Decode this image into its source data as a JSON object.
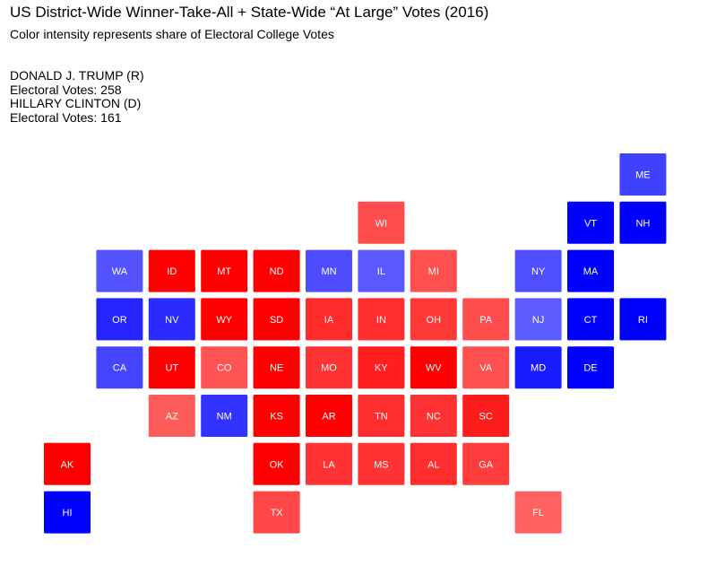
{
  "title": "US District-Wide Winner-Take-All + State-Wide “At Large” Votes (2016)",
  "subtitle": "Color intensity represents share of Electoral College Votes",
  "candidates": [
    {
      "name": "DONALD J. TRUMP (R)",
      "votes_label": "Electoral Votes: 258",
      "electoral_votes": 258
    },
    {
      "name": "HILLARY CLINTON (D)",
      "votes_label": "Electoral Votes: 161",
      "electoral_votes": 161
    }
  ],
  "colors": {
    "republican": "#ff0000",
    "democrat": "#0000ff",
    "label": "#ffffff",
    "background": "#ffffff"
  },
  "chart_data": {
    "type": "heatmap",
    "encoding": "tile grid map; color = winning party, intensity = share of the state's electoral votes",
    "states": [
      {
        "state": "ME",
        "col": 11,
        "row": 0,
        "party": "D",
        "share": 0.75
      },
      {
        "state": "WI",
        "col": 6,
        "row": 1,
        "party": "R",
        "share": 0.7
      },
      {
        "state": "VT",
        "col": 10,
        "row": 1,
        "party": "D",
        "share": 1.0
      },
      {
        "state": "NH",
        "col": 11,
        "row": 1,
        "party": "D",
        "share": 1.0
      },
      {
        "state": "WA",
        "col": 1,
        "row": 2,
        "party": "D",
        "share": 0.67
      },
      {
        "state": "ID",
        "col": 2,
        "row": 2,
        "party": "R",
        "share": 1.0
      },
      {
        "state": "MT",
        "col": 3,
        "row": 2,
        "party": "R",
        "share": 1.0
      },
      {
        "state": "ND",
        "col": 4,
        "row": 2,
        "party": "R",
        "share": 1.0
      },
      {
        "state": "MN",
        "col": 5,
        "row": 2,
        "party": "D",
        "share": 0.7
      },
      {
        "state": "IL",
        "col": 6,
        "row": 2,
        "party": "D",
        "share": 0.65
      },
      {
        "state": "MI",
        "col": 7,
        "row": 2,
        "party": "R",
        "share": 0.69
      },
      {
        "state": "NY",
        "col": 9,
        "row": 2,
        "party": "D",
        "share": 0.69
      },
      {
        "state": "MA",
        "col": 10,
        "row": 2,
        "party": "D",
        "share": 1.0
      },
      {
        "state": "OR",
        "col": 1,
        "row": 3,
        "party": "D",
        "share": 0.86
      },
      {
        "state": "NV",
        "col": 2,
        "row": 3,
        "party": "D",
        "share": 0.83
      },
      {
        "state": "WY",
        "col": 3,
        "row": 3,
        "party": "R",
        "share": 1.0
      },
      {
        "state": "SD",
        "col": 4,
        "row": 3,
        "party": "R",
        "share": 1.0
      },
      {
        "state": "IA",
        "col": 5,
        "row": 3,
        "party": "R",
        "share": 0.83
      },
      {
        "state": "IN",
        "col": 6,
        "row": 3,
        "party": "R",
        "share": 0.82
      },
      {
        "state": "OH",
        "col": 7,
        "row": 3,
        "party": "R",
        "share": 0.78
      },
      {
        "state": "PA",
        "col": 8,
        "row": 3,
        "party": "R",
        "share": 0.7
      },
      {
        "state": "NJ",
        "col": 9,
        "row": 3,
        "party": "D",
        "share": 0.64
      },
      {
        "state": "CT",
        "col": 10,
        "row": 3,
        "party": "D",
        "share": 1.0
      },
      {
        "state": "RI",
        "col": 11,
        "row": 3,
        "party": "D",
        "share": 1.0
      },
      {
        "state": "CA",
        "col": 1,
        "row": 4,
        "party": "D",
        "share": 0.73
      },
      {
        "state": "UT",
        "col": 2,
        "row": 4,
        "party": "R",
        "share": 1.0
      },
      {
        "state": "CO",
        "col": 3,
        "row": 4,
        "party": "R",
        "share": 0.67
      },
      {
        "state": "NE",
        "col": 4,
        "row": 4,
        "party": "R",
        "share": 1.0
      },
      {
        "state": "MO",
        "col": 5,
        "row": 4,
        "party": "R",
        "share": 0.8
      },
      {
        "state": "KY",
        "col": 6,
        "row": 4,
        "party": "R",
        "share": 0.88
      },
      {
        "state": "WV",
        "col": 7,
        "row": 4,
        "party": "R",
        "share": 1.0
      },
      {
        "state": "VA",
        "col": 8,
        "row": 4,
        "party": "R",
        "share": 0.69
      },
      {
        "state": "MD",
        "col": 9,
        "row": 4,
        "party": "D",
        "share": 0.9
      },
      {
        "state": "DE",
        "col": 10,
        "row": 4,
        "party": "D",
        "share": 1.0
      },
      {
        "state": "AZ",
        "col": 2,
        "row": 5,
        "party": "R",
        "share": 0.64
      },
      {
        "state": "NM",
        "col": 3,
        "row": 5,
        "party": "D",
        "share": 0.8
      },
      {
        "state": "KS",
        "col": 4,
        "row": 5,
        "party": "R",
        "share": 1.0
      },
      {
        "state": "AR",
        "col": 5,
        "row": 5,
        "party": "R",
        "share": 1.0
      },
      {
        "state": "TN",
        "col": 6,
        "row": 5,
        "party": "R",
        "share": 0.82
      },
      {
        "state": "NC",
        "col": 7,
        "row": 5,
        "party": "R",
        "share": 0.8
      },
      {
        "state": "SC",
        "col": 8,
        "row": 5,
        "party": "R",
        "share": 0.89
      },
      {
        "state": "AK",
        "col": 0,
        "row": 6,
        "party": "R",
        "share": 1.0
      },
      {
        "state": "OK",
        "col": 4,
        "row": 6,
        "party": "R",
        "share": 1.0
      },
      {
        "state": "LA",
        "col": 5,
        "row": 6,
        "party": "R",
        "share": 0.8
      },
      {
        "state": "MS",
        "col": 6,
        "row": 6,
        "party": "R",
        "share": 0.8
      },
      {
        "state": "AL",
        "col": 7,
        "row": 6,
        "party": "R",
        "share": 0.82
      },
      {
        "state": "GA",
        "col": 8,
        "row": 6,
        "party": "R",
        "share": 0.76
      },
      {
        "state": "HI",
        "col": 0,
        "row": 7,
        "party": "D",
        "share": 1.0
      },
      {
        "state": "TX",
        "col": 4,
        "row": 7,
        "party": "R",
        "share": 0.72
      },
      {
        "state": "FL",
        "col": 9,
        "row": 7,
        "party": "R",
        "share": 0.62
      }
    ]
  }
}
